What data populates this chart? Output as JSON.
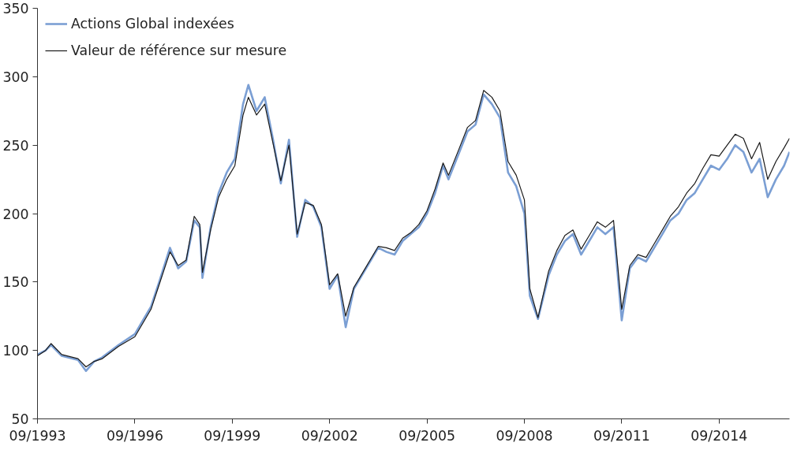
{
  "chart_data": {
    "type": "line",
    "xlim": [
      "1993-09",
      "2016-11"
    ],
    "ylim": [
      50,
      350
    ],
    "xticks": [
      {
        "value": "1993-09",
        "label": "09/1993"
      },
      {
        "value": "1996-09",
        "label": "09/1996"
      },
      {
        "value": "1999-09",
        "label": "09/1999"
      },
      {
        "value": "2002-09",
        "label": "09/2002"
      },
      {
        "value": "2005-09",
        "label": "09/2005"
      },
      {
        "value": "2008-09",
        "label": "09/2008"
      },
      {
        "value": "2011-09",
        "label": "09/2011"
      },
      {
        "value": "2014-09",
        "label": "09/2014"
      }
    ],
    "yticks": [
      50,
      100,
      150,
      200,
      250,
      300,
      350
    ],
    "grid": false,
    "legend": "top left",
    "line_style": "solid",
    "x": [
      "1993-09",
      "1993-12",
      "1994-02",
      "1994-06",
      "1994-12",
      "1995-03",
      "1995-06",
      "1995-09",
      "1996-03",
      "1996-09",
      "1997-03",
      "1997-06",
      "1997-10",
      "1998-01",
      "1998-04",
      "1998-07",
      "1998-09",
      "1998-10",
      "1999-01",
      "1999-04",
      "1999-07",
      "1999-10",
      "2000-01",
      "2000-03",
      "2000-06",
      "2000-09",
      "2000-12",
      "2001-03",
      "2001-06",
      "2001-09",
      "2001-12",
      "2002-03",
      "2002-06",
      "2002-09",
      "2002-12",
      "2003-03",
      "2003-06",
      "2003-09",
      "2003-12",
      "2004-03",
      "2004-06",
      "2004-09",
      "2004-12",
      "2005-03",
      "2005-06",
      "2005-09",
      "2005-12",
      "2006-03",
      "2006-05",
      "2006-09",
      "2006-12",
      "2007-03",
      "2007-06",
      "2007-09",
      "2007-12",
      "2008-03",
      "2008-06",
      "2008-09",
      "2008-11",
      "2009-02",
      "2009-06",
      "2009-09",
      "2009-12",
      "2010-03",
      "2010-06",
      "2010-09",
      "2010-12",
      "2011-03",
      "2011-06",
      "2011-09",
      "2011-12",
      "2012-03",
      "2012-06",
      "2012-09",
      "2012-12",
      "2013-03",
      "2013-06",
      "2013-09",
      "2013-12",
      "2014-03",
      "2014-06",
      "2014-09",
      "2014-12",
      "2015-03",
      "2015-06",
      "2015-09",
      "2015-12",
      "2016-03",
      "2016-06",
      "2016-09",
      "2016-11"
    ],
    "series": [
      {
        "name": "Actions Global indexées",
        "color": "#7b9fd4",
        "values": [
          97,
          100,
          104,
          96,
          93,
          85,
          92,
          95,
          104,
          112,
          132,
          150,
          175,
          160,
          165,
          195,
          190,
          153,
          190,
          215,
          230,
          240,
          280,
          294,
          275,
          285,
          255,
          222,
          254,
          183,
          210,
          205,
          190,
          145,
          155,
          117,
          145,
          155,
          165,
          175,
          172,
          170,
          180,
          185,
          190,
          200,
          215,
          235,
          225,
          245,
          260,
          265,
          287,
          280,
          270,
          230,
          220,
          200,
          140,
          123,
          155,
          170,
          180,
          185,
          170,
          180,
          190,
          185,
          190,
          122,
          160,
          168,
          165,
          175,
          185,
          195,
          200,
          210,
          215,
          225,
          235,
          232,
          240,
          250,
          245,
          230,
          240,
          212,
          225,
          235,
          245
        ]
      },
      {
        "name": "Valeur de référence sur mesure",
        "color": "#1a1a1a",
        "values": [
          96,
          100,
          105,
          97,
          94,
          88,
          92,
          94,
          103,
          110,
          130,
          148,
          172,
          162,
          166,
          198,
          192,
          157,
          188,
          212,
          225,
          235,
          272,
          285,
          272,
          280,
          252,
          224,
          250,
          185,
          208,
          206,
          192,
          148,
          156,
          125,
          146,
          156,
          166,
          176,
          175,
          173,
          182,
          186,
          192,
          202,
          218,
          237,
          228,
          248,
          263,
          268,
          290,
          285,
          275,
          238,
          228,
          210,
          145,
          124,
          158,
          173,
          184,
          188,
          174,
          184,
          194,
          190,
          195,
          130,
          162,
          170,
          168,
          178,
          188,
          198,
          205,
          215,
          222,
          233,
          243,
          242,
          250,
          258,
          255,
          240,
          252,
          225,
          238,
          248,
          255
        ]
      }
    ]
  }
}
